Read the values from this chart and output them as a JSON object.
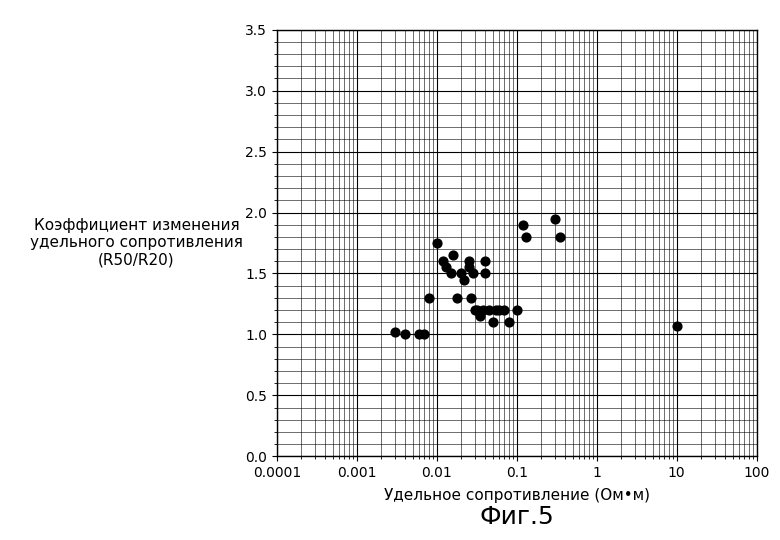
{
  "scatter_x": [
    0.003,
    0.004,
    0.006,
    0.007,
    0.008,
    0.01,
    0.012,
    0.013,
    0.015,
    0.016,
    0.018,
    0.02,
    0.022,
    0.025,
    0.025,
    0.027,
    0.028,
    0.03,
    0.032,
    0.035,
    0.038,
    0.04,
    0.04,
    0.045,
    0.05,
    0.055,
    0.06,
    0.07,
    0.08,
    0.1,
    0.12,
    0.13,
    0.3,
    0.35,
    10
  ],
  "scatter_y": [
    1.02,
    1.0,
    1.0,
    1.0,
    1.3,
    1.75,
    1.6,
    1.55,
    1.5,
    1.65,
    1.3,
    1.5,
    1.45,
    1.55,
    1.6,
    1.3,
    1.5,
    1.2,
    1.2,
    1.15,
    1.2,
    1.5,
    1.6,
    1.2,
    1.1,
    1.2,
    1.2,
    1.2,
    1.1,
    1.2,
    1.9,
    1.8,
    1.95,
    1.8,
    1.07
  ],
  "xlabel": "Удельное сопротивление (Ом•м)",
  "ylabel_line1": "Коэффициент изменения",
  "ylabel_line2": "удельного сопротивления",
  "ylabel_line3": "(R50/R20)",
  "figure_label": "Фиг.5",
  "ylim": [
    0.0,
    3.5
  ],
  "yticks": [
    0.0,
    0.5,
    1.0,
    1.5,
    2.0,
    2.5,
    3.0,
    3.5
  ],
  "dot_color": "#000000",
  "dot_size": 40,
  "bg_color": "#ffffff",
  "grid_color": "#000000",
  "font_size_ticks": 10,
  "font_size_xlabel": 11,
  "font_size_ylabel": 11,
  "font_size_fig_label": 18
}
